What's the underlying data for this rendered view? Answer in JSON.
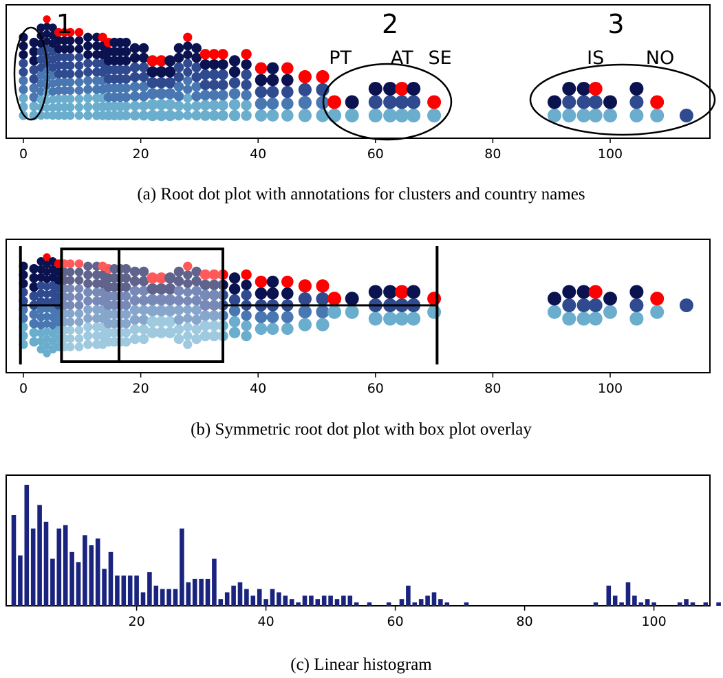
{
  "palette": [
    "#6aadcc",
    "#4877b1",
    "#2f4a8f",
    "#0b1250"
  ],
  "highlight_color": "#ff0000",
  "bar_color": "#1a237e",
  "chart_data": [
    {
      "type": "scatter",
      "subtype": "root dot plot",
      "caption": "(a)  Root dot plot with annotations for clusters and country names",
      "xlim": [
        -1,
        115
      ],
      "xticks": [
        0,
        20,
        40,
        60,
        80,
        100
      ],
      "xticklabels": [
        "0",
        "20",
        "40",
        "60",
        "80",
        "100"
      ],
      "columns": [
        {
          "x": 0,
          "n": 10,
          "hl": false
        },
        {
          "x": 1.8,
          "n": 9,
          "hl": false
        },
        {
          "x": 3,
          "n": 12,
          "hl": false
        },
        {
          "x": 4,
          "n": 14,
          "hl": true
        },
        {
          "x": 5,
          "n": 12,
          "hl": false
        },
        {
          "x": 6,
          "n": 11,
          "hl": true
        },
        {
          "x": 7,
          "n": 11,
          "hl": true
        },
        {
          "x": 8,
          "n": 11,
          "hl": true
        },
        {
          "x": 9.5,
          "n": 11,
          "hl": true
        },
        {
          "x": 11,
          "n": 10,
          "hl": false
        },
        {
          "x": 12.5,
          "n": 10,
          "hl": false
        },
        {
          "x": 13.5,
          "n": 10,
          "hl": true
        },
        {
          "x": 14.5,
          "n": 9,
          "hl": true
        },
        {
          "x": 15.5,
          "n": 9,
          "hl": false
        },
        {
          "x": 16.5,
          "n": 9,
          "hl": false
        },
        {
          "x": 17.5,
          "n": 9,
          "hl": false
        },
        {
          "x": 19,
          "n": 8,
          "hl": false
        },
        {
          "x": 20.5,
          "n": 8,
          "hl": false
        },
        {
          "x": 22,
          "n": 6,
          "hl": true
        },
        {
          "x": 23.5,
          "n": 6,
          "hl": true
        },
        {
          "x": 25,
          "n": 6,
          "hl": false
        },
        {
          "x": 26.5,
          "n": 8,
          "hl": false
        },
        {
          "x": 28,
          "n": 10,
          "hl": true
        },
        {
          "x": 29.5,
          "n": 8,
          "hl": false
        },
        {
          "x": 31,
          "n": 7,
          "hl": true
        },
        {
          "x": 32.5,
          "n": 7,
          "hl": true
        },
        {
          "x": 34,
          "n": 7,
          "hl": true
        },
        {
          "x": 36,
          "n": 6,
          "hl": false
        },
        {
          "x": 38,
          "n": 7,
          "hl": true
        },
        {
          "x": 40.5,
          "n": 5,
          "hl": true
        },
        {
          "x": 42.5,
          "n": 5,
          "hl": false
        },
        {
          "x": 45,
          "n": 5,
          "hl": true
        },
        {
          "x": 48,
          "n": 4,
          "hl": true
        },
        {
          "x": 51,
          "n": 4,
          "hl": true
        },
        {
          "x": 53,
          "n": 2,
          "hl": true
        },
        {
          "x": 56,
          "n": 2,
          "hl": false
        },
        {
          "x": 60,
          "n": 3,
          "hl": false
        },
        {
          "x": 62.5,
          "n": 3,
          "hl": false
        },
        {
          "x": 64.5,
          "n": 3,
          "hl": true
        },
        {
          "x": 66.5,
          "n": 3,
          "hl": false
        },
        {
          "x": 70,
          "n": 2,
          "hl": true
        },
        {
          "x": 90.5,
          "n": 2,
          "hl": false
        },
        {
          "x": 93,
          "n": 3,
          "hl": false
        },
        {
          "x": 95.5,
          "n": 3,
          "hl": false
        },
        {
          "x": 97.5,
          "n": 3,
          "hl": true
        },
        {
          "x": 100,
          "n": 2,
          "hl": false
        },
        {
          "x": 104.5,
          "n": 3,
          "hl": false
        },
        {
          "x": 108,
          "n": 2,
          "hl": true
        },
        {
          "x": 113,
          "n": 1,
          "hl": false
        }
      ],
      "annotations": {
        "cluster_labels": [
          {
            "text": "1",
            "x": 7
          },
          {
            "text": "2",
            "x": 62.5
          },
          {
            "text": "3",
            "x": 101
          }
        ],
        "country_labels": [
          {
            "text": "PT",
            "x": 54
          },
          {
            "text": "AT",
            "x": 64.5
          },
          {
            "text": "SE",
            "x": 71
          },
          {
            "text": "IS",
            "x": 97.5
          },
          {
            "text": "NO",
            "x": 108.5
          }
        ]
      }
    },
    {
      "type": "scatter",
      "subtype": "symmetric root dot plot with box plot",
      "caption": "(b)  Symmetric root dot plot with box plot overlay",
      "xlim": [
        -1,
        115
      ],
      "xticks": [
        0,
        20,
        40,
        60,
        80,
        100
      ],
      "xticklabels": [
        "0",
        "20",
        "40",
        "60",
        "80",
        "100"
      ],
      "box": {
        "whisker_low": -0.5,
        "q1": 6.5,
        "median": 16.3,
        "q3": 34,
        "whisker_high": 70.5
      }
    },
    {
      "type": "bar",
      "subtype": "linear histogram",
      "caption": "(c)  Linear histogram",
      "xlim": [
        0,
        114
      ],
      "ylim": [
        0,
        36
      ],
      "xticks": [
        20,
        40,
        60,
        80,
        100
      ],
      "xticklabels": [
        "20",
        "40",
        "60",
        "80",
        "100"
      ],
      "x": [
        1,
        2,
        3,
        4,
        5,
        6,
        7,
        8,
        9,
        10,
        11,
        12,
        13,
        14,
        15,
        16,
        17,
        18,
        19,
        20,
        21,
        22,
        23,
        24,
        25,
        26,
        27,
        28,
        29,
        30,
        31,
        32,
        33,
        34,
        35,
        36,
        37,
        38,
        39,
        40,
        41,
        42,
        43,
        44,
        45,
        46,
        47,
        48,
        49,
        50,
        51,
        52,
        53,
        54,
        56,
        59,
        61,
        62,
        63,
        64,
        65,
        66,
        67,
        68,
        71,
        91,
        93,
        94,
        95,
        96,
        97,
        98,
        99,
        100,
        104,
        105,
        106,
        108,
        110,
        113
      ],
      "values": [
        27,
        15,
        36,
        23,
        30,
        25,
        14,
        23,
        24,
        16,
        13,
        21,
        18,
        20,
        11,
        16,
        9,
        9,
        9,
        9,
        4,
        10,
        6,
        5,
        5,
        5,
        23,
        7,
        8,
        8,
        8,
        14,
        2,
        4,
        6,
        7,
        5,
        3,
        5,
        2,
        5,
        4,
        3,
        2,
        1,
        3,
        3,
        2,
        3,
        3,
        2,
        3,
        3,
        1,
        1,
        1,
        2,
        6,
        1,
        2,
        3,
        4,
        2,
        1,
        1,
        1,
        6,
        3,
        1,
        7,
        3,
        1,
        2,
        1,
        1,
        2,
        1,
        1,
        1,
        1
      ]
    }
  ]
}
